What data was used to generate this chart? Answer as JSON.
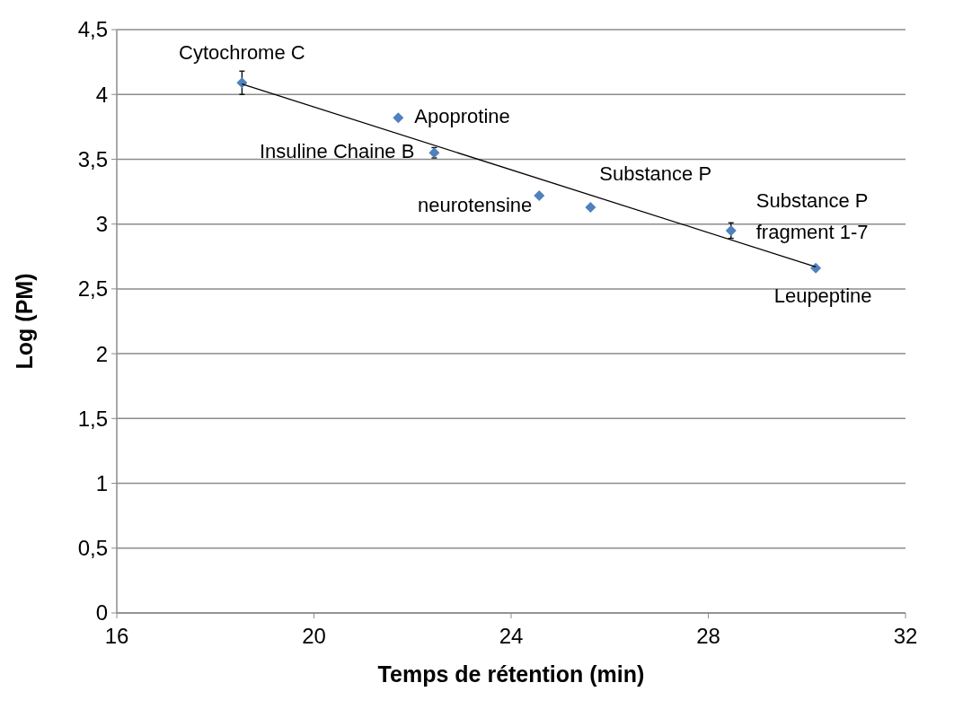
{
  "chart_data": {
    "type": "scatter",
    "xlabel": "Temps de rétention (min)",
    "ylabel": "Log (PM)",
    "xlim": [
      16,
      32
    ],
    "xticks": [
      16,
      20,
      24,
      28,
      32
    ],
    "ylim": [
      0,
      4.5
    ],
    "yticks": [
      0,
      {
        "value": 0.5,
        "label": "0,5"
      },
      1,
      {
        "value": 1.5,
        "label": "1,5"
      },
      2,
      {
        "value": 2.5,
        "label": "2,5"
      },
      3,
      {
        "value": 3.5,
        "label": "3,5"
      },
      4,
      {
        "value": 4.5,
        "label": "4,5"
      }
    ],
    "grid": "y",
    "marker": "diamond",
    "series": [
      {
        "color": "#4f81bd",
        "x": [
          18.54,
          21.71,
          22.44,
          24.57,
          25.61,
          28.46,
          30.18
        ],
        "values": [
          4.09,
          3.82,
          3.55,
          3.22,
          3.13,
          2.95,
          2.66
        ],
        "errors": [
          0.09,
          null,
          0.04,
          null,
          null,
          0.06,
          null
        ]
      },
      {
        "type": "line",
        "color": "#000000",
        "x": [
          18.54,
          30.18
        ],
        "values": [
          4.08,
          2.67
        ],
        "line_style": "solid",
        "marker": "none"
      }
    ],
    "annotations": [
      {
        "text": "Cytochrome C",
        "x": 18.54,
        "y": 4.09
      },
      {
        "text": "Apoprotine",
        "x": 21.71,
        "y": 3.82
      },
      {
        "text": "Insuline Chaine B",
        "x": 22.44,
        "y": 3.55
      },
      {
        "text": "neurotensine",
        "x": 24.57,
        "y": 3.22
      },
      {
        "text": "Substance P",
        "x": 25.61,
        "y": 3.13
      },
      {
        "text": "Substance P fragment 1-7",
        "x": 28.46,
        "y": 2.95
      },
      {
        "text": "Leupeptine",
        "x": 30.18,
        "y": 2.66
      }
    ]
  }
}
